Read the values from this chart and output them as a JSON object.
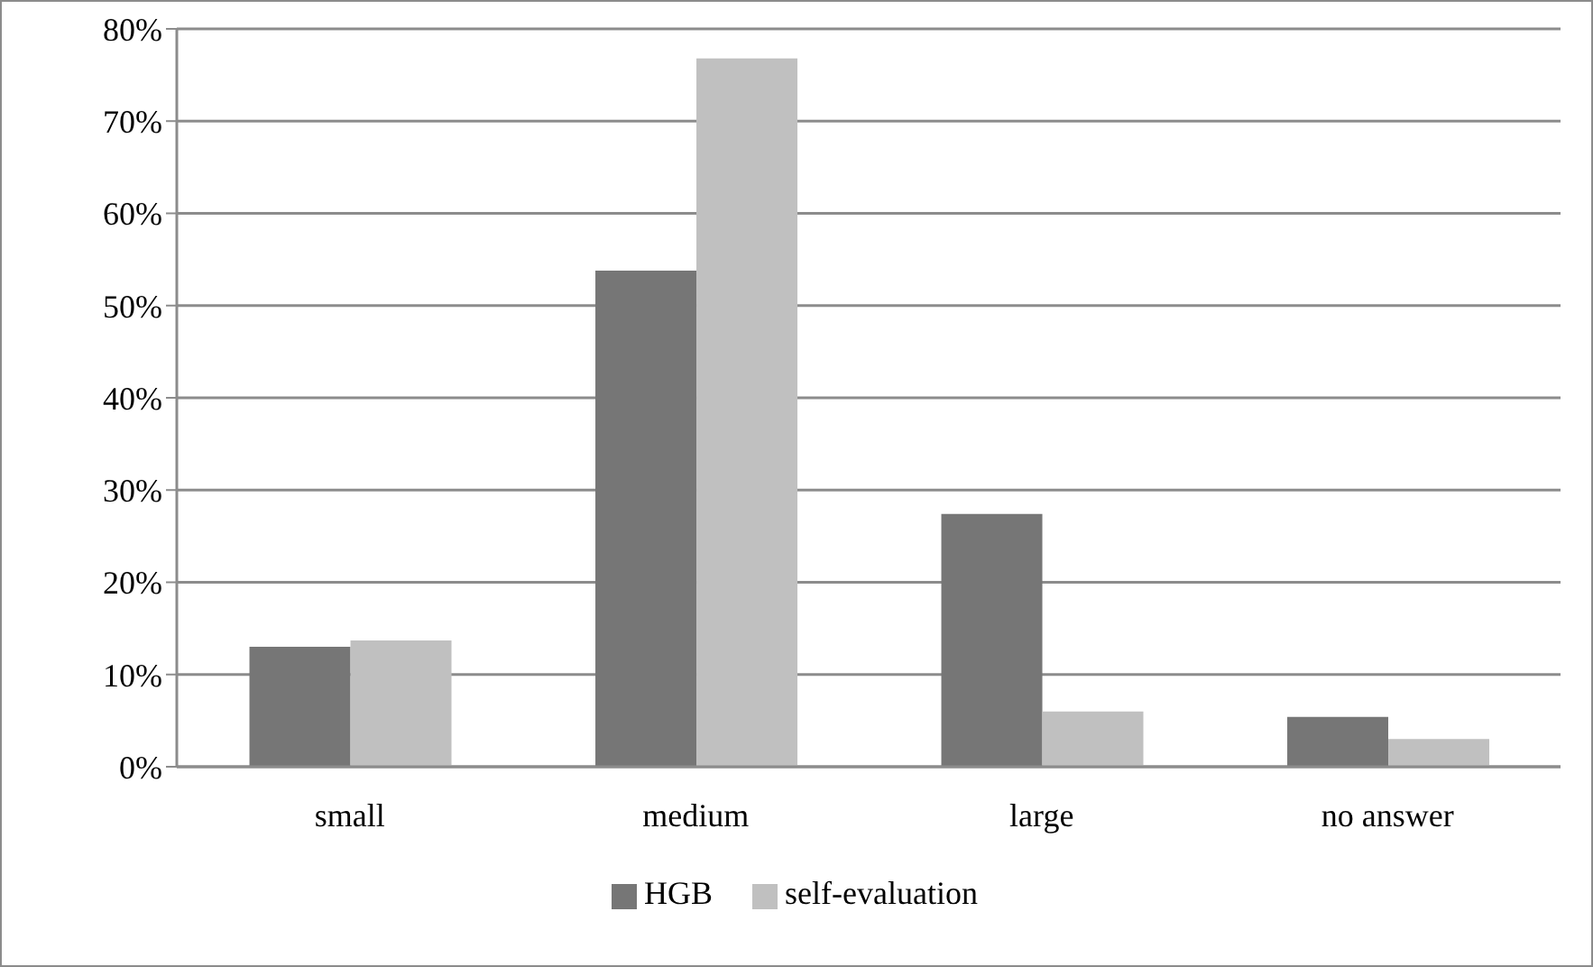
{
  "chart_data": {
    "type": "bar",
    "categories": [
      "small",
      "medium",
      "large",
      "no answer"
    ],
    "series": [
      {
        "name": "HGB",
        "color": "#767676",
        "values": [
          13.0,
          53.8,
          27.4,
          5.4
        ]
      },
      {
        "name": "self-evaluation",
        "color": "#c0c0c0",
        "values": [
          13.7,
          76.8,
          6.0,
          3.0
        ]
      }
    ],
    "ylim": [
      0,
      80
    ],
    "yticks": [
      {
        "value": 0,
        "label": "0%"
      },
      {
        "value": 10,
        "label": "10%"
      },
      {
        "value": 20,
        "label": "20%"
      },
      {
        "value": 30,
        "label": "30%"
      },
      {
        "value": 40,
        "label": "40%"
      },
      {
        "value": 50,
        "label": "50%"
      },
      {
        "value": 60,
        "label": "60%"
      },
      {
        "value": 70,
        "label": "70%"
      },
      {
        "value": 80,
        "label": "80%"
      }
    ],
    "grid": "y",
    "legend": "bottom"
  }
}
